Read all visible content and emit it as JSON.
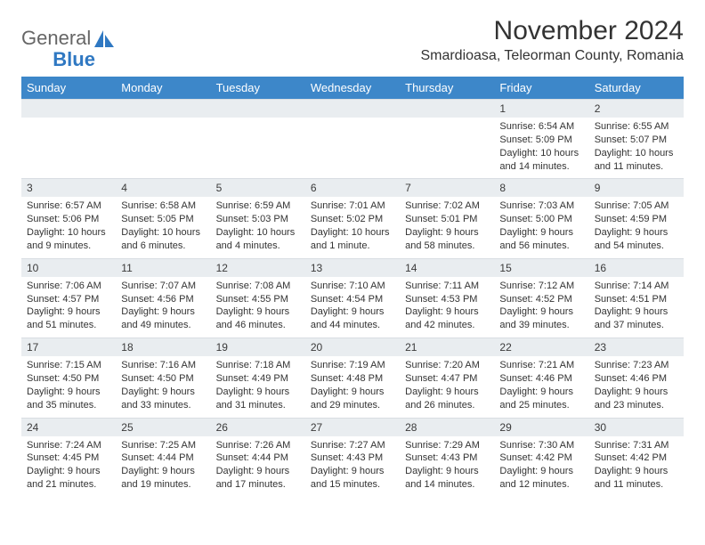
{
  "logo": {
    "word1": "General",
    "word2": "Blue"
  },
  "header": {
    "month_title": "November 2024",
    "location": "Smardioasa, Teleorman County, Romania"
  },
  "colors": {
    "header_bg": "#3d87c9",
    "header_fg": "#ffffff",
    "daynum_bg": "#e9edf0",
    "text": "#333333",
    "logo_blue": "#2f78c2"
  },
  "day_names": [
    "Sunday",
    "Monday",
    "Tuesday",
    "Wednesday",
    "Thursday",
    "Friday",
    "Saturday"
  ],
  "weeks": [
    [
      {
        "num": "",
        "sunrise": "",
        "sunset": "",
        "daylight": ""
      },
      {
        "num": "",
        "sunrise": "",
        "sunset": "",
        "daylight": ""
      },
      {
        "num": "",
        "sunrise": "",
        "sunset": "",
        "daylight": ""
      },
      {
        "num": "",
        "sunrise": "",
        "sunset": "",
        "daylight": ""
      },
      {
        "num": "",
        "sunrise": "",
        "sunset": "",
        "daylight": ""
      },
      {
        "num": "1",
        "sunrise": "Sunrise: 6:54 AM",
        "sunset": "Sunset: 5:09 PM",
        "daylight": "Daylight: 10 hours and 14 minutes."
      },
      {
        "num": "2",
        "sunrise": "Sunrise: 6:55 AM",
        "sunset": "Sunset: 5:07 PM",
        "daylight": "Daylight: 10 hours and 11 minutes."
      }
    ],
    [
      {
        "num": "3",
        "sunrise": "Sunrise: 6:57 AM",
        "sunset": "Sunset: 5:06 PM",
        "daylight": "Daylight: 10 hours and 9 minutes."
      },
      {
        "num": "4",
        "sunrise": "Sunrise: 6:58 AM",
        "sunset": "Sunset: 5:05 PM",
        "daylight": "Daylight: 10 hours and 6 minutes."
      },
      {
        "num": "5",
        "sunrise": "Sunrise: 6:59 AM",
        "sunset": "Sunset: 5:03 PM",
        "daylight": "Daylight: 10 hours and 4 minutes."
      },
      {
        "num": "6",
        "sunrise": "Sunrise: 7:01 AM",
        "sunset": "Sunset: 5:02 PM",
        "daylight": "Daylight: 10 hours and 1 minute."
      },
      {
        "num": "7",
        "sunrise": "Sunrise: 7:02 AM",
        "sunset": "Sunset: 5:01 PM",
        "daylight": "Daylight: 9 hours and 58 minutes."
      },
      {
        "num": "8",
        "sunrise": "Sunrise: 7:03 AM",
        "sunset": "Sunset: 5:00 PM",
        "daylight": "Daylight: 9 hours and 56 minutes."
      },
      {
        "num": "9",
        "sunrise": "Sunrise: 7:05 AM",
        "sunset": "Sunset: 4:59 PM",
        "daylight": "Daylight: 9 hours and 54 minutes."
      }
    ],
    [
      {
        "num": "10",
        "sunrise": "Sunrise: 7:06 AM",
        "sunset": "Sunset: 4:57 PM",
        "daylight": "Daylight: 9 hours and 51 minutes."
      },
      {
        "num": "11",
        "sunrise": "Sunrise: 7:07 AM",
        "sunset": "Sunset: 4:56 PM",
        "daylight": "Daylight: 9 hours and 49 minutes."
      },
      {
        "num": "12",
        "sunrise": "Sunrise: 7:08 AM",
        "sunset": "Sunset: 4:55 PM",
        "daylight": "Daylight: 9 hours and 46 minutes."
      },
      {
        "num": "13",
        "sunrise": "Sunrise: 7:10 AM",
        "sunset": "Sunset: 4:54 PM",
        "daylight": "Daylight: 9 hours and 44 minutes."
      },
      {
        "num": "14",
        "sunrise": "Sunrise: 7:11 AM",
        "sunset": "Sunset: 4:53 PM",
        "daylight": "Daylight: 9 hours and 42 minutes."
      },
      {
        "num": "15",
        "sunrise": "Sunrise: 7:12 AM",
        "sunset": "Sunset: 4:52 PM",
        "daylight": "Daylight: 9 hours and 39 minutes."
      },
      {
        "num": "16",
        "sunrise": "Sunrise: 7:14 AM",
        "sunset": "Sunset: 4:51 PM",
        "daylight": "Daylight: 9 hours and 37 minutes."
      }
    ],
    [
      {
        "num": "17",
        "sunrise": "Sunrise: 7:15 AM",
        "sunset": "Sunset: 4:50 PM",
        "daylight": "Daylight: 9 hours and 35 minutes."
      },
      {
        "num": "18",
        "sunrise": "Sunrise: 7:16 AM",
        "sunset": "Sunset: 4:50 PM",
        "daylight": "Daylight: 9 hours and 33 minutes."
      },
      {
        "num": "19",
        "sunrise": "Sunrise: 7:18 AM",
        "sunset": "Sunset: 4:49 PM",
        "daylight": "Daylight: 9 hours and 31 minutes."
      },
      {
        "num": "20",
        "sunrise": "Sunrise: 7:19 AM",
        "sunset": "Sunset: 4:48 PM",
        "daylight": "Daylight: 9 hours and 29 minutes."
      },
      {
        "num": "21",
        "sunrise": "Sunrise: 7:20 AM",
        "sunset": "Sunset: 4:47 PM",
        "daylight": "Daylight: 9 hours and 26 minutes."
      },
      {
        "num": "22",
        "sunrise": "Sunrise: 7:21 AM",
        "sunset": "Sunset: 4:46 PM",
        "daylight": "Daylight: 9 hours and 25 minutes."
      },
      {
        "num": "23",
        "sunrise": "Sunrise: 7:23 AM",
        "sunset": "Sunset: 4:46 PM",
        "daylight": "Daylight: 9 hours and 23 minutes."
      }
    ],
    [
      {
        "num": "24",
        "sunrise": "Sunrise: 7:24 AM",
        "sunset": "Sunset: 4:45 PM",
        "daylight": "Daylight: 9 hours and 21 minutes."
      },
      {
        "num": "25",
        "sunrise": "Sunrise: 7:25 AM",
        "sunset": "Sunset: 4:44 PM",
        "daylight": "Daylight: 9 hours and 19 minutes."
      },
      {
        "num": "26",
        "sunrise": "Sunrise: 7:26 AM",
        "sunset": "Sunset: 4:44 PM",
        "daylight": "Daylight: 9 hours and 17 minutes."
      },
      {
        "num": "27",
        "sunrise": "Sunrise: 7:27 AM",
        "sunset": "Sunset: 4:43 PM",
        "daylight": "Daylight: 9 hours and 15 minutes."
      },
      {
        "num": "28",
        "sunrise": "Sunrise: 7:29 AM",
        "sunset": "Sunset: 4:43 PM",
        "daylight": "Daylight: 9 hours and 14 minutes."
      },
      {
        "num": "29",
        "sunrise": "Sunrise: 7:30 AM",
        "sunset": "Sunset: 4:42 PM",
        "daylight": "Daylight: 9 hours and 12 minutes."
      },
      {
        "num": "30",
        "sunrise": "Sunrise: 7:31 AM",
        "sunset": "Sunset: 4:42 PM",
        "daylight": "Daylight: 9 hours and 11 minutes."
      }
    ]
  ]
}
